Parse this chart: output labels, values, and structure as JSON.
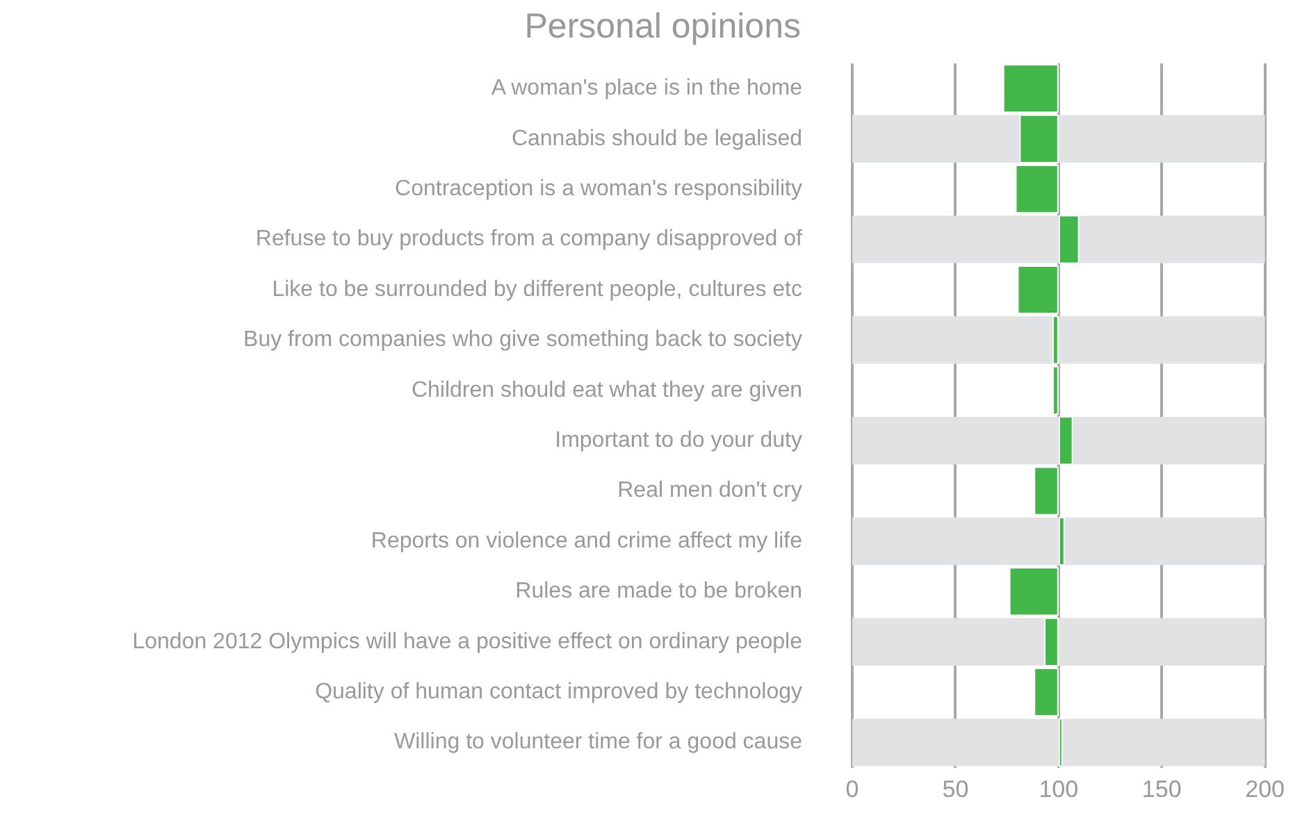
{
  "chart_data": {
    "type": "bar",
    "orientation": "horizontal",
    "title": "Personal opinions",
    "categories": [
      "A woman's place is in the home",
      "Cannabis should be legalised",
      "Contraception is a woman's responsibility",
      "Refuse to buy products from a company disapproved of",
      "Like to be surrounded by different people, cultures etc",
      "Buy from companies who give something back to society",
      "Children should eat what they are given",
      "Important to do your duty",
      "Real men don't cry",
      "Reports on violence and crime affect my life",
      "Rules are made to be broken",
      "London 2012 Olympics will have a positive effect on ordinary people",
      "Quality of human contact improved by technology",
      "Willing to volunteer time for a good cause"
    ],
    "base": [
      100,
      100,
      100,
      100,
      100,
      100,
      100,
      100,
      100,
      100,
      100,
      100,
      100,
      100
    ],
    "values": [
      -27,
      -19,
      -21,
      10,
      -20,
      -3,
      -3,
      7,
      -12,
      3,
      -24,
      -7,
      -12,
      2
    ],
    "color": "#43b649",
    "xlim": [
      0,
      200
    ],
    "xticks": [
      0,
      50,
      100,
      150,
      200
    ],
    "grid": "x"
  }
}
